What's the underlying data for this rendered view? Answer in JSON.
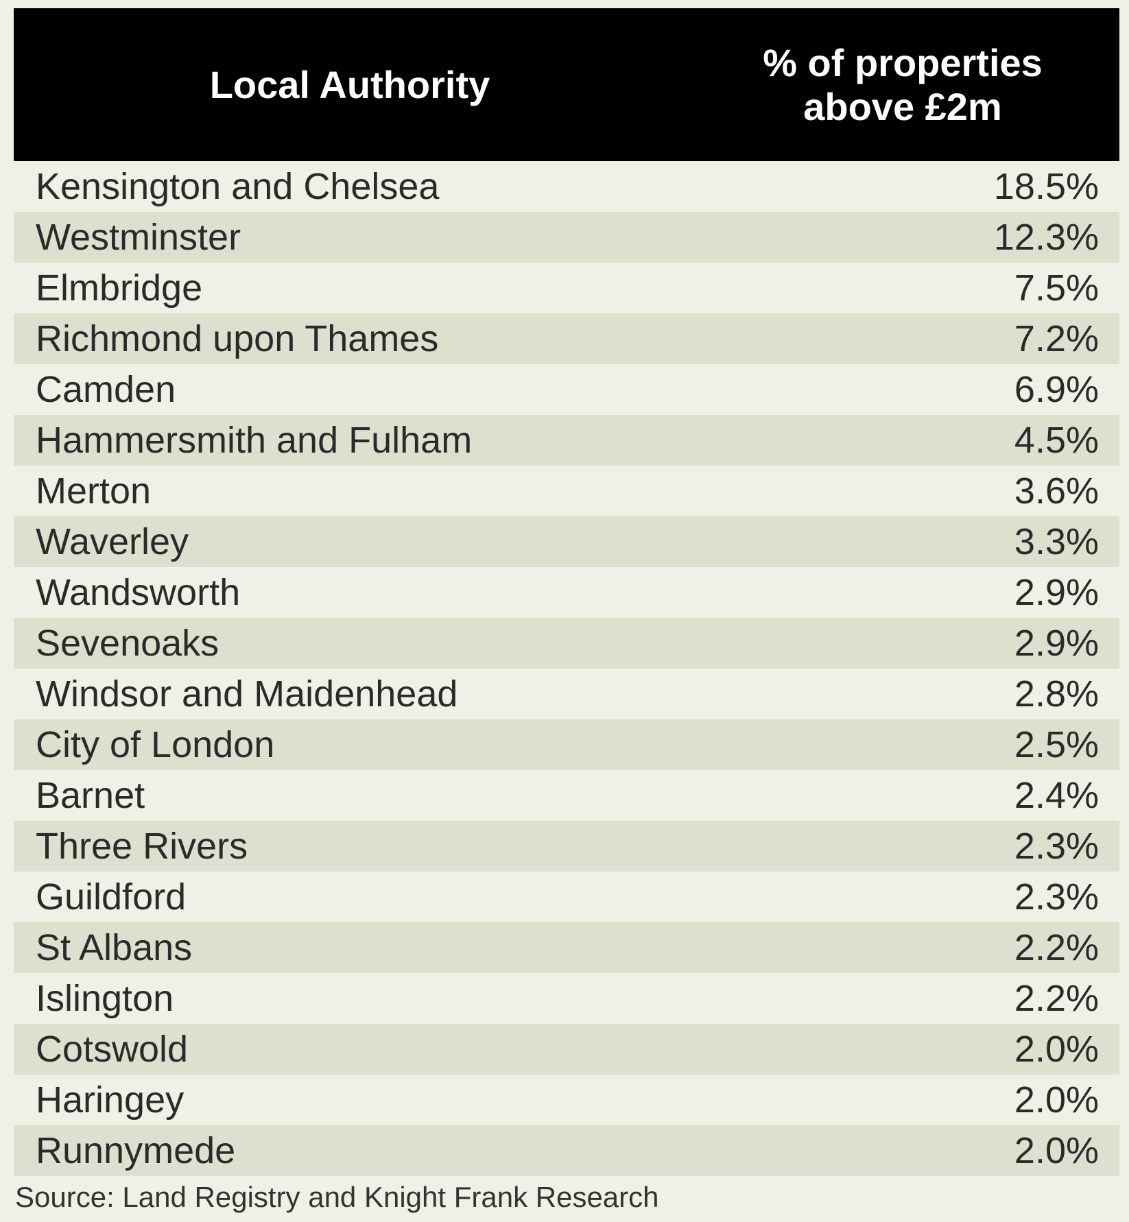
{
  "chart_data": {
    "type": "table",
    "columns": [
      "Local Authority",
      "% of properties above £2m"
    ],
    "header": {
      "col1": "Local Authority",
      "col2_line1": "% of properties",
      "col2_line2": "above £2m"
    },
    "rows": [
      {
        "name": "Kensington and Chelsea",
        "value": 18.5,
        "value_label": "18.5%"
      },
      {
        "name": "Westminster",
        "value": 12.3,
        "value_label": "12.3%"
      },
      {
        "name": "Elmbridge",
        "value": 7.5,
        "value_label": "7.5%"
      },
      {
        "name": "Richmond upon Thames",
        "value": 7.2,
        "value_label": "7.2%"
      },
      {
        "name": "Camden",
        "value": 6.9,
        "value_label": "6.9%"
      },
      {
        "name": "Hammersmith and Fulham",
        "value": 4.5,
        "value_label": "4.5%"
      },
      {
        "name": "Merton",
        "value": 3.6,
        "value_label": "3.6%"
      },
      {
        "name": "Waverley",
        "value": 3.3,
        "value_label": "3.3%"
      },
      {
        "name": "Wandsworth",
        "value": 2.9,
        "value_label": "2.9%"
      },
      {
        "name": "Sevenoaks",
        "value": 2.9,
        "value_label": "2.9%"
      },
      {
        "name": "Windsor and Maidenhead",
        "value": 2.8,
        "value_label": "2.8%"
      },
      {
        "name": "City of London",
        "value": 2.5,
        "value_label": "2.5%"
      },
      {
        "name": "Barnet",
        "value": 2.4,
        "value_label": "2.4%"
      },
      {
        "name": "Three Rivers",
        "value": 2.3,
        "value_label": "2.3%"
      },
      {
        "name": "Guildford",
        "value": 2.3,
        "value_label": "2.3%"
      },
      {
        "name": "St Albans",
        "value": 2.2,
        "value_label": "2.2%"
      },
      {
        "name": "Islington",
        "value": 2.2,
        "value_label": "2.2%"
      },
      {
        "name": "Cotswold",
        "value": 2.0,
        "value_label": "2.0%"
      },
      {
        "name": "Haringey",
        "value": 2.0,
        "value_label": "2.0%"
      },
      {
        "name": "Runnymede",
        "value": 2.0,
        "value_label": "2.0%"
      }
    ],
    "source": "Source: Land Registry and Knight Frank Research"
  },
  "colors": {
    "header_bg": "#000000",
    "header_text": "#ffffff",
    "row_bg": "#f0f0e6",
    "row_alt_bg": "#dfdfcf",
    "text": "#2a2a2a"
  }
}
